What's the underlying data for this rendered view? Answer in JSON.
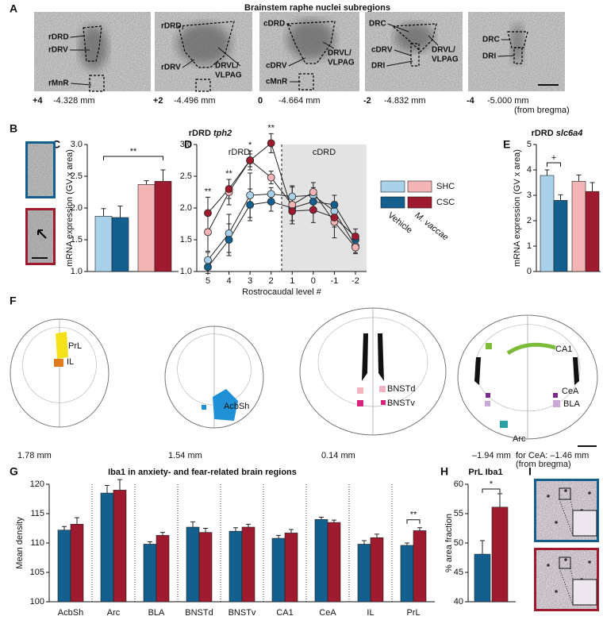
{
  "panel_letters": [
    "A",
    "B",
    "C",
    "D",
    "E",
    "F",
    "G",
    "H",
    "I"
  ],
  "panel_a": {
    "title": "Brainstem raphe nuclei subregions",
    "sections": [
      {
        "labels": [
          "rDRD",
          "rDRV",
          "rMnR"
        ],
        "level": "+4",
        "coordinate": "-4.328 mm"
      },
      {
        "labels": [
          "rDRD",
          "rDRV",
          "DRVL/",
          "VLPAG"
        ],
        "level": "+2",
        "coordinate": "-4.496 mm"
      },
      {
        "labels": [
          "cDRD",
          "DRVL/",
          "VLPAG",
          "cDRV",
          "cMnR"
        ],
        "level": "0",
        "coordinate": "-4.664 mm"
      },
      {
        "labels": [
          "DRC",
          "cDRV",
          "DRVL/",
          "VLPAG",
          "DRI"
        ],
        "level": "-2",
        "coordinate": "-4.832 mm"
      },
      {
        "labels": [
          "DRC",
          "DRI"
        ],
        "level": "-4",
        "coordinate": "-5.000 mm"
      }
    ],
    "note": "(from bregma)"
  },
  "legend": {
    "rows": [
      "SHC",
      "CSC"
    ],
    "columns": [
      "Vehicle",
      "M. vaccae"
    ],
    "colors": [
      [
        "#a9d1ea",
        "#f2b4b5"
      ],
      [
        "#135f8d",
        "#9e1b2f"
      ]
    ]
  },
  "chart_data": [
    {
      "type": "bar",
      "title": "rDRD",
      "title_italic": "tph2",
      "y_label": "mRNA expression (GV x area)",
      "ylim": [
        1,
        3
      ],
      "yticks": [
        {
          "value": 1,
          "label": "1.0"
        },
        {
          "value": 1.5,
          "label": "1.5"
        },
        {
          "value": 2,
          "label": "2.0"
        },
        {
          "value": 2.5,
          "label": "2.5"
        },
        {
          "value": 3,
          "label": "3.0"
        }
      ],
      "values": [
        1.87,
        1.85,
        2.37,
        2.42
      ],
      "errors": [
        0.12,
        0.18,
        0.06,
        0.18
      ],
      "significance": "**"
    },
    {
      "type": "line",
      "x_label": "Rostrocaudal level #",
      "categories": [
        "5",
        "4",
        "3",
        "2",
        "1",
        "0",
        "-1",
        "-2"
      ],
      "region_labels": [
        "rDRD",
        "cDRD"
      ],
      "ylim": [
        1,
        3
      ],
      "yticks": [
        {
          "value": 1,
          "label": "1.0"
        },
        {
          "value": 1.5,
          "label": "1.5"
        },
        {
          "value": 2,
          "label": "2.0"
        },
        {
          "value": 2.5,
          "label": "2.5"
        },
        {
          "value": 3,
          "label": "3.0"
        }
      ],
      "series": [
        {
          "values": [
            1.18,
            1.6,
            2.2,
            2.22,
            2.18,
            2.2,
            1.95,
            1.4
          ],
          "errors": [
            0.12,
            0.3,
            0.35,
            0.1,
            0.15,
            0.12,
            0.15,
            0.1
          ]
        },
        {
          "values": [
            1.07,
            1.5,
            2.05,
            2.1,
            2.0,
            2.1,
            2.05,
            1.5
          ],
          "errors": [
            0.1,
            0.25,
            0.25,
            0.15,
            0.2,
            0.15,
            0.15,
            0.1
          ]
        },
        {
          "values": [
            1.62,
            2.25,
            2.75,
            2.48,
            2.05,
            2.25,
            1.78,
            1.38
          ],
          "errors": [
            0.3,
            0.2,
            0.15,
            0.1,
            0.3,
            0.15,
            0.25,
            0.1
          ]
        },
        {
          "values": [
            1.92,
            2.3,
            2.75,
            3.02,
            1.95,
            1.97,
            1.85,
            1.55
          ],
          "errors": [
            0.25,
            0.15,
            0.1,
            0.15,
            0.2,
            0.2,
            0.15,
            0.12
          ]
        }
      ],
      "significance": [
        "**",
        "**",
        "*",
        "**",
        null,
        null,
        null,
        null
      ]
    },
    {
      "type": "bar",
      "title": "rDRD",
      "title_italic": "slc6a4",
      "y_label": "mRNA expression (GV x area)",
      "ylim": [
        0,
        5
      ],
      "yticks": [
        0,
        1,
        2,
        3,
        4,
        5
      ],
      "values": [
        3.78,
        2.8,
        3.55,
        3.15
      ],
      "errors": [
        0.22,
        0.22,
        0.25,
        0.35
      ],
      "significance": "+"
    },
    {
      "type": "bar",
      "title": "Iba1 in anxiety- and fear-related brain regions",
      "y_label": "Mean density",
      "categories": [
        "AcbSh",
        "Arc",
        "BLA",
        "BNSTd",
        "BNSTv",
        "CA1",
        "CeA",
        "IL",
        "PrL"
      ],
      "ylim": [
        100,
        120
      ],
      "yticks": [
        100,
        105,
        110,
        115,
        120
      ],
      "series": [
        {
          "color": "#135f8d",
          "values": [
            112.2,
            118.5,
            109.8,
            112.7,
            112.0,
            110.8,
            114.0,
            109.8,
            109.6
          ],
          "errors": [
            0.6,
            1.3,
            0.4,
            0.9,
            0.6,
            0.5,
            0.4,
            0.6,
            0.4
          ]
        },
        {
          "color": "#9e1b2f",
          "values": [
            113.2,
            119.0,
            111.3,
            111.8,
            112.7,
            111.7,
            113.5,
            110.9,
            112.1
          ],
          "errors": [
            1.1,
            1.8,
            0.5,
            0.7,
            0.5,
            0.6,
            0.4,
            0.6,
            0.5
          ]
        }
      ],
      "significance": [
        null,
        null,
        null,
        null,
        null,
        null,
        null,
        null,
        "**"
      ]
    },
    {
      "type": "bar",
      "title": "PrL Iba1",
      "y_label": "% area fraction",
      "ylim": [
        40,
        60
      ],
      "yticks": [
        40,
        45,
        50,
        55,
        60
      ],
      "values": [
        48.1,
        56.1
      ],
      "errors": [
        2.3,
        2.3
      ],
      "colors": [
        "#135f8d",
        "#9e1b2f"
      ],
      "significance": "*"
    }
  ],
  "panel_f": {
    "sections": [
      {
        "labels": [
          "PrL",
          "IL"
        ],
        "coordinate": "1.78 mm"
      },
      {
        "labels": [
          "AcbSh"
        ],
        "coordinate": "1.54 mm"
      },
      {
        "labels": [
          "BNSTd",
          "BNSTv"
        ],
        "coordinate": "0.14 mm"
      },
      {
        "labels": [
          "CA1",
          "CeA",
          "BLA",
          "Arc"
        ],
        "coordinate": "–1.94 mm"
      }
    ],
    "note": "for CeA: –1.46 mm",
    "note2": "(from bregma)"
  }
}
